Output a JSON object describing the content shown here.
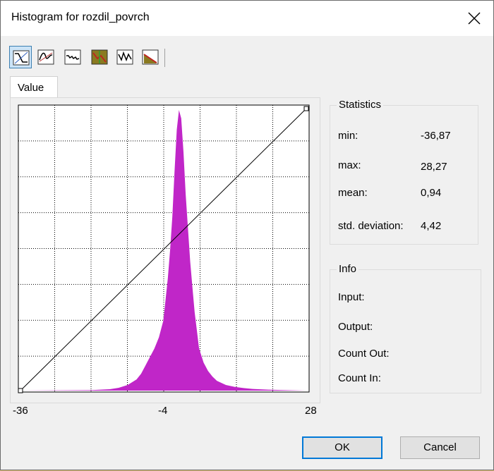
{
  "window": {
    "title": "Histogram for rozdil_povrch"
  },
  "toolbar": {
    "icons": [
      "linear-stretch-icon",
      "smooth-curve-icon",
      "step-curve-icon",
      "color-fill-curve-icon",
      "peaks-curve-icon",
      "ramp-curve-icon"
    ]
  },
  "tabs": [
    {
      "label": "Value"
    }
  ],
  "chart_data": {
    "type": "area",
    "title": "",
    "xlabel": "",
    "ylabel": "",
    "xlim": [
      -36,
      28
    ],
    "x_ticks": [
      "-36",
      "-4",
      "28"
    ],
    "grid": true,
    "series": [
      {
        "fill": "#c026c8",
        "x": [
          -36,
          -20,
          -16,
          -14,
          -12,
          -10,
          -9,
          -8,
          -7,
          -6,
          -5,
          -4,
          -3,
          -2.5,
          -2,
          -1.5,
          -1,
          -0.5,
          0,
          0.5,
          1,
          1.5,
          2,
          2.5,
          3,
          4,
          5,
          6,
          7,
          8,
          10,
          12,
          14,
          16,
          20,
          28
        ],
        "values": [
          0,
          0.2,
          0.5,
          1,
          2,
          4,
          6,
          9,
          12,
          15,
          19,
          25,
          40,
          50,
          62,
          78,
          93,
          100,
          97,
          85,
          70,
          58,
          46,
          37,
          28,
          15,
          10,
          7,
          5,
          3.5,
          2,
          1.3,
          0.9,
          0.6,
          0.3,
          0
        ]
      }
    ],
    "transfer_line": {
      "from": [
        -36,
        0
      ],
      "to": [
        28,
        100
      ],
      "color": "#000000"
    }
  },
  "statistics": {
    "title": "Statistics",
    "rows": [
      {
        "label": "min:",
        "value": "-36,87"
      },
      {
        "label": "max:",
        "value": "28,27"
      },
      {
        "label": "mean:",
        "value": "0,94"
      },
      {
        "label": "std. deviation:",
        "value": "4,42"
      }
    ]
  },
  "info": {
    "title": "Info",
    "rows": [
      {
        "label": "Input:"
      },
      {
        "label": "Output:"
      },
      {
        "label": "Count Out:"
      },
      {
        "label": "Count In:"
      }
    ]
  },
  "buttons": {
    "ok": "OK",
    "cancel": "Cancel"
  }
}
